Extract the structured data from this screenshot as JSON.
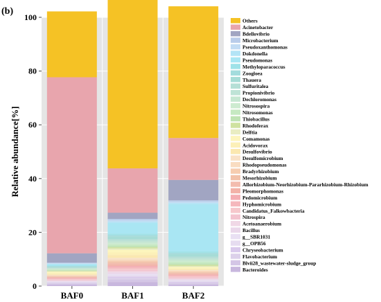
{
  "panel_label": "(b)",
  "chart_data": {
    "type": "bar",
    "stacked": true,
    "title": "",
    "xlabel": "",
    "ylabel": "Relative abundance[%]",
    "ylim": [
      0,
      100
    ],
    "yticks": [
      0,
      20,
      40,
      60,
      80,
      100
    ],
    "grid": true,
    "legend_position": "right",
    "categories": [
      "BAF0",
      "BAF1",
      "BAF2"
    ],
    "series": [
      {
        "name": "Bacteroides",
        "color": "#c8b7de",
        "values": [
          0.5,
          1.5,
          0.5
        ]
      },
      {
        "name": "Blvii28_wastewater-sludge_group",
        "color": "#d4c6e6",
        "values": [
          0.3,
          1.0,
          0.5
        ]
      },
      {
        "name": "Flavobacterium",
        "color": "#dcd0ea",
        "values": [
          0.3,
          0.5,
          0.3
        ]
      },
      {
        "name": "Chryseobacterium",
        "color": "#d9c9ec",
        "values": [
          0.2,
          0.5,
          0.3
        ]
      },
      {
        "name": "g__OPB56",
        "color": "#e6dcf0",
        "values": [
          0.2,
          0.5,
          0.3
        ]
      },
      {
        "name": "g__SBR1031",
        "color": "#e9e0f3",
        "values": [
          0.2,
          0.5,
          0.3
        ]
      },
      {
        "name": "Bacillus",
        "color": "#ead7ea",
        "values": [
          0.2,
          0.5,
          0.3
        ]
      },
      {
        "name": "Acetoanaerobium",
        "color": "#f0d8e6",
        "values": [
          0.2,
          0.5,
          0.3
        ]
      },
      {
        "name": "Nitrospira",
        "color": "#f3c4cf",
        "values": [
          0.3,
          0.5,
          0.5
        ]
      },
      {
        "name": "Candidatus_Falkowbacteria",
        "color": "#f6c8cc",
        "values": [
          0.2,
          0.5,
          0.3
        ]
      },
      {
        "name": "Hyphomicrobium",
        "color": "#f5b8bd",
        "values": [
          0.2,
          0.5,
          0.3
        ]
      },
      {
        "name": "Pedomicrobium",
        "color": "#f4aeb3",
        "values": [
          0.2,
          0.5,
          0.3
        ]
      },
      {
        "name": "Pleomorphomonas",
        "color": "#f2b2a8",
        "values": [
          0.2,
          0.5,
          0.3
        ]
      },
      {
        "name": "Allorhizobium-Neorhizobium-Pararhizobium-Rhizobium",
        "color": "#f3bcae",
        "values": [
          0.2,
          0.5,
          0.3
        ]
      },
      {
        "name": "Mesorhizobium",
        "color": "#f2c2aa",
        "values": [
          0.2,
          0.5,
          0.3
        ]
      },
      {
        "name": "Bradyrhizobium",
        "color": "#f6cdb0",
        "values": [
          0.2,
          0.5,
          0.3
        ]
      },
      {
        "name": "Rhodopseudomonas",
        "color": "#f9dcc1",
        "values": [
          0.2,
          0.5,
          0.3
        ]
      },
      {
        "name": "Desulfomicrobium",
        "color": "#f9e2c8",
        "values": [
          0.2,
          0.5,
          0.3
        ]
      },
      {
        "name": "Desulfovibrio",
        "color": "#fbe8b0",
        "values": [
          0.3,
          1.0,
          0.3
        ]
      },
      {
        "name": "Acidovorax",
        "color": "#fcf0b8",
        "values": [
          0.3,
          1.0,
          0.3
        ]
      },
      {
        "name": "Comamonas",
        "color": "#fdf5bd",
        "values": [
          0.5,
          1.0,
          0.5
        ]
      },
      {
        "name": "Delftia",
        "color": "#e9edc2",
        "values": [
          0.2,
          0.5,
          0.3
        ]
      },
      {
        "name": "Rhodoferax",
        "color": "#cfe2a0",
        "values": [
          0.2,
          0.5,
          0.5
        ]
      },
      {
        "name": "Thiobacillus",
        "color": "#bfe3b4",
        "values": [
          0.2,
          0.5,
          0.5
        ]
      },
      {
        "name": "Nitrosomonas",
        "color": "#c6e9c2",
        "values": [
          0.2,
          0.5,
          0.5
        ]
      },
      {
        "name": "Nitrosospira",
        "color": "#cdebd0",
        "values": [
          0.2,
          0.5,
          0.5
        ]
      },
      {
        "name": "Dechloromonas",
        "color": "#c6e7d2",
        "values": [
          0.2,
          0.5,
          0.5
        ]
      },
      {
        "name": "Propionivibrio",
        "color": "#bfe3d6",
        "values": [
          0.2,
          0.5,
          0.5
        ]
      },
      {
        "name": "Sulfuritalea",
        "color": "#b5dfd6",
        "values": [
          0.2,
          0.5,
          0.5
        ]
      },
      {
        "name": "Thauera",
        "color": "#a6dcd6",
        "values": [
          0.3,
          1.0,
          1.0
        ]
      },
      {
        "name": "Zoogloea",
        "color": "#a3dcdd",
        "values": [
          0.2,
          0.5,
          0.5
        ]
      },
      {
        "name": "Methyloparacoccus",
        "color": "#9fe2e8",
        "values": [
          0.2,
          0.5,
          0.5
        ]
      },
      {
        "name": "Pseudomonas",
        "color": "#a9e6f3",
        "values": [
          0.5,
          4.0,
          17.5
        ]
      },
      {
        "name": "Dokdonella",
        "color": "#b3e4f6",
        "values": [
          0.2,
          0.5,
          0.5
        ]
      },
      {
        "name": "Pseudoxanthomonas",
        "color": "#c3dcf4",
        "values": [
          0.2,
          0.5,
          0.5
        ]
      },
      {
        "name": "Microbacterium",
        "color": "#b9ccea",
        "values": [
          0.2,
          0.5,
          0.5
        ]
      },
      {
        "name": "Bdellovibrio",
        "color": "#a1a5c2",
        "values": [
          3.5,
          2.3,
          7.6
        ]
      },
      {
        "name": "Acinetobacter",
        "color": "#e8a5ad",
        "values": [
          65.5,
          16.5,
          15.6
        ]
      },
      {
        "name": "Others",
        "color": "#f5c225",
        "values": [
          24.5,
          63.0,
          49.0
        ]
      }
    ]
  }
}
